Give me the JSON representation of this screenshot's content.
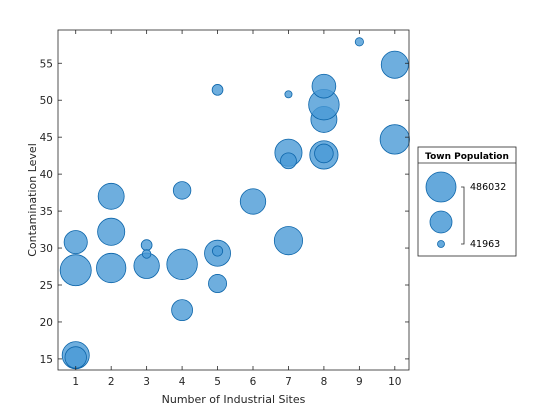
{
  "chart_data": {
    "type": "scatter",
    "subtype": "bubble",
    "title": "",
    "xlabel": "Number of Industrial Sites",
    "ylabel": "Contamination Level",
    "xlim": [
      0.5,
      10.4
    ],
    "ylim": [
      13.5,
      59.5
    ],
    "xticks": [
      1,
      2,
      3,
      4,
      5,
      6,
      7,
      8,
      9,
      10
    ],
    "yticks": [
      15,
      20,
      25,
      30,
      35,
      40,
      45,
      50,
      55
    ],
    "grid": false,
    "marker_color": "#4a9ad6",
    "marker_edge_color": "#0c65aa",
    "points": [
      {
        "x": 1,
        "y": 15.5,
        "size": 400000
      },
      {
        "x": 1,
        "y": 15.2,
        "size": 300000
      },
      {
        "x": 1,
        "y": 27.0,
        "size": 470000
      },
      {
        "x": 1,
        "y": 30.8,
        "size": 330000
      },
      {
        "x": 2,
        "y": 27.3,
        "size": 440000
      },
      {
        "x": 2,
        "y": 32.2,
        "size": 400000
      },
      {
        "x": 2,
        "y": 37.0,
        "size": 380000
      },
      {
        "x": 3,
        "y": 27.6,
        "size": 370000
      },
      {
        "x": 3,
        "y": 30.4,
        "size": 110000
      },
      {
        "x": 3,
        "y": 29.2,
        "size": 70000
      },
      {
        "x": 4,
        "y": 27.8,
        "size": 460000
      },
      {
        "x": 4,
        "y": 21.6,
        "size": 290000
      },
      {
        "x": 4,
        "y": 37.8,
        "size": 230000
      },
      {
        "x": 5,
        "y": 29.3,
        "size": 380000
      },
      {
        "x": 5,
        "y": 29.6,
        "size": 100000
      },
      {
        "x": 5,
        "y": 25.2,
        "size": 240000
      },
      {
        "x": 5,
        "y": 51.4,
        "size": 110000
      },
      {
        "x": 6,
        "y": 36.3,
        "size": 370000
      },
      {
        "x": 7,
        "y": 31.0,
        "size": 420000
      },
      {
        "x": 7,
        "y": 42.9,
        "size": 400000
      },
      {
        "x": 7,
        "y": 41.8,
        "size": 200000
      },
      {
        "x": 7,
        "y": 50.8,
        "size": 45000
      },
      {
        "x": 8,
        "y": 42.6,
        "size": 420000
      },
      {
        "x": 8,
        "y": 42.8,
        "size": 250000
      },
      {
        "x": 8,
        "y": 47.4,
        "size": 380000
      },
      {
        "x": 8,
        "y": 49.4,
        "size": 460000
      },
      {
        "x": 8,
        "y": 51.9,
        "size": 340000
      },
      {
        "x": 9,
        "y": 57.9,
        "size": 65000
      },
      {
        "x": 10,
        "y": 54.8,
        "size": 400000
      },
      {
        "x": 10,
        "y": 44.7,
        "size": 440000
      }
    ],
    "size_range": [
      41963,
      486032
    ],
    "legend": {
      "title": "Town Population",
      "position": "east-outside",
      "max_label": "486032",
      "min_label": "41963"
    }
  }
}
